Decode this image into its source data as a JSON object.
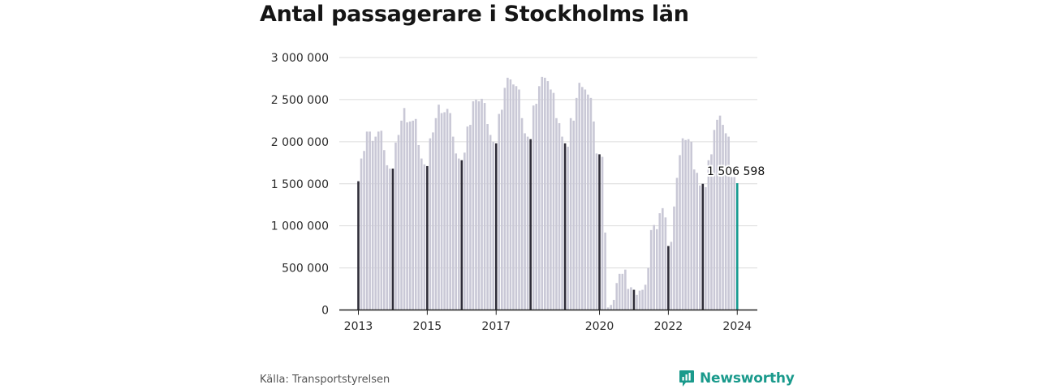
{
  "title": "Antal passagerare i Stockholms län",
  "source": "Källa: Transportstyrelsen",
  "brand": {
    "name": "Newsworthy",
    "icon": "bar-chart-speech-bubble-icon"
  },
  "colors": {
    "bar": "#c9c8d6",
    "january_bar": "#2e2c38",
    "highlight": "#14998f",
    "grid": "#dcdcdc",
    "axis": "#222222"
  },
  "chart_data": {
    "type": "bar",
    "title": "Antal passagerare i Stockholms län",
    "xlabel": "",
    "ylabel": "",
    "ylim": [
      0,
      3000000
    ],
    "y_ticks": [
      0,
      500000,
      1000000,
      1500000,
      2000000,
      2500000,
      3000000
    ],
    "y_tick_labels": [
      "0",
      "500 000",
      "1 000 000",
      "1 500 000",
      "2 000 000",
      "2 500 000",
      "3 000 000"
    ],
    "x_tick_labels": [
      "2013",
      "2015",
      "2017",
      "2020",
      "2022",
      "2024"
    ],
    "grid": true,
    "frequency": "monthly",
    "series": [
      {
        "year": "2013",
        "values": [
          1530000,
          1800000,
          1890000,
          2120000,
          2120000,
          2010000,
          2060000,
          2120000,
          2130000,
          1900000,
          1720000,
          1680000
        ]
      },
      {
        "year": "2014",
        "values": [
          1680000,
          1990000,
          2080000,
          2250000,
          2400000,
          2230000,
          2240000,
          2250000,
          2270000,
          1960000,
          1800000,
          1730000
        ]
      },
      {
        "year": "2015",
        "values": [
          1710000,
          2040000,
          2110000,
          2280000,
          2440000,
          2340000,
          2350000,
          2390000,
          2340000,
          2060000,
          1860000,
          1800000
        ]
      },
      {
        "year": "2016",
        "values": [
          1780000,
          1870000,
          2180000,
          2200000,
          2480000,
          2500000,
          2480000,
          2510000,
          2460000,
          2210000,
          2080000,
          2000000
        ]
      },
      {
        "year": "2017",
        "values": [
          1980000,
          2330000,
          2380000,
          2640000,
          2760000,
          2740000,
          2680000,
          2660000,
          2620000,
          2280000,
          2100000,
          2060000
        ]
      },
      {
        "year": "2018",
        "values": [
          2030000,
          2430000,
          2450000,
          2660000,
          2770000,
          2760000,
          2720000,
          2620000,
          2580000,
          2280000,
          2220000,
          2060000
        ]
      },
      {
        "year": "2019",
        "values": [
          1980000,
          1940000,
          2280000,
          2250000,
          2520000,
          2700000,
          2650000,
          2620000,
          2560000,
          2520000,
          2240000,
          1860000
        ]
      },
      {
        "year": "2020",
        "values": [
          1850000,
          1820000,
          920000,
          30000,
          60000,
          120000,
          320000,
          430000,
          430000,
          480000,
          250000,
          270000
        ]
      },
      {
        "year": "2021",
        "values": [
          240000,
          180000,
          230000,
          240000,
          300000,
          500000,
          950000,
          1010000,
          960000,
          1150000,
          1210000,
          1100000
        ]
      },
      {
        "year": "2022",
        "values": [
          760000,
          810000,
          1230000,
          1570000,
          1840000,
          2040000,
          2020000,
          2030000,
          2000000,
          1670000,
          1630000,
          1480000
        ]
      },
      {
        "year": "2023",
        "values": [
          1500000,
          1460000,
          1780000,
          1850000,
          2140000,
          2260000,
          2310000,
          2200000,
          2100000,
          2060000,
          1580000,
          1580000
        ]
      },
      {
        "year": "2024",
        "values": [
          1506598
        ]
      }
    ],
    "highlight": {
      "label": "1 506 598",
      "value": 1506598
    }
  }
}
